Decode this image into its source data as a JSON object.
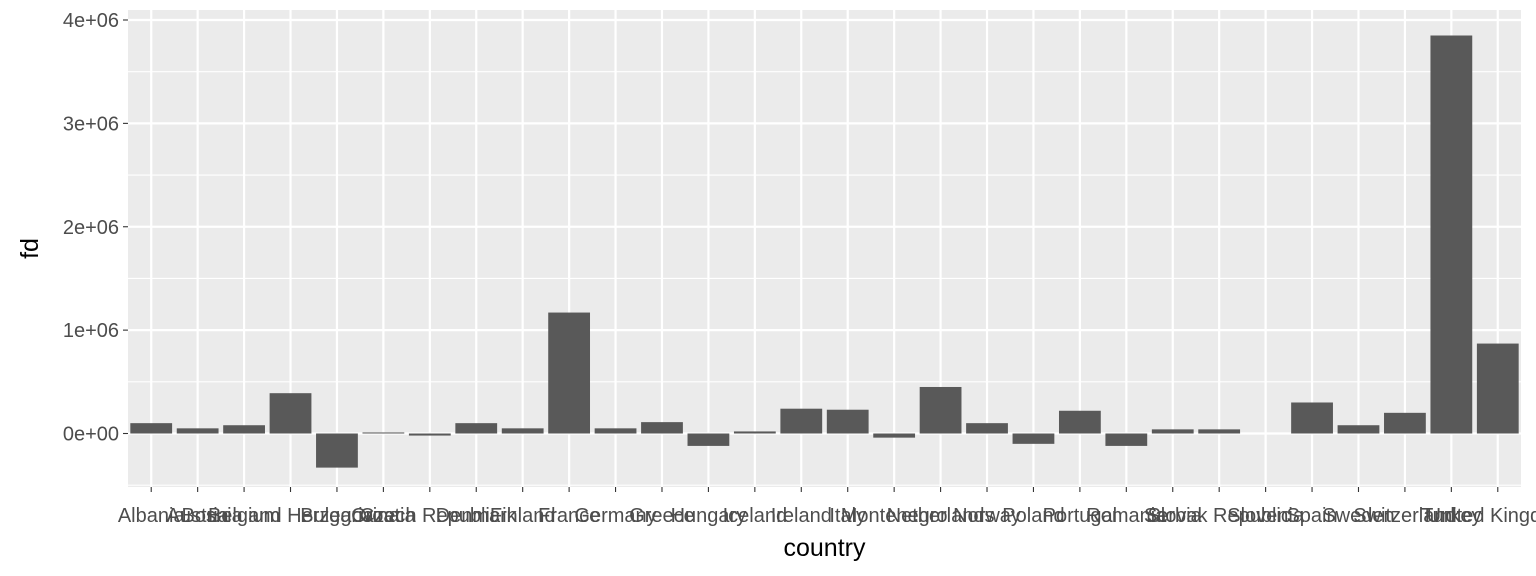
{
  "chart_data": {
    "type": "bar",
    "title": "",
    "xlabel": "country",
    "ylabel": "fd",
    "categories": [
      "Albania",
      "Austria",
      "Belgium",
      "Bosnia and Herzegovina",
      "Bulgaria",
      "Croatia",
      "Czech Republic",
      "Denmark",
      "Finland",
      "France",
      "Germany",
      "Greece",
      "Hungary",
      "Iceland",
      "Ireland",
      "Italy",
      "Montenegro",
      "Netherlands",
      "Norway",
      "Poland",
      "Portugal",
      "Romania",
      "Serbia",
      "Slovak Republic",
      "Slovenia",
      "Spain",
      "Sweden",
      "Switzerland",
      "Turkey",
      "United Kingdom"
    ],
    "values": [
      100000,
      50000,
      80000,
      390000,
      -330000,
      10000,
      -20000,
      100000,
      50000,
      1170000,
      50000,
      110000,
      -120000,
      20000,
      240000,
      230000,
      -40000,
      450000,
      100000,
      -100000,
      220000,
      -120000,
      40000,
      40000,
      0,
      300000,
      80000,
      200000,
      3850000,
      870000
    ],
    "ylim": [
      -500000,
      4000000
    ],
    "yticks": [
      0,
      1000000,
      2000000,
      3000000,
      4000000
    ],
    "ytick_labels": [
      "0e+00",
      "1e+06",
      "2e+06",
      "3e+06",
      "4e+06"
    ],
    "grid": true,
    "bar_color": "#595959",
    "panel_color": "#ebebeb",
    "grid_color": "#ffffff"
  }
}
